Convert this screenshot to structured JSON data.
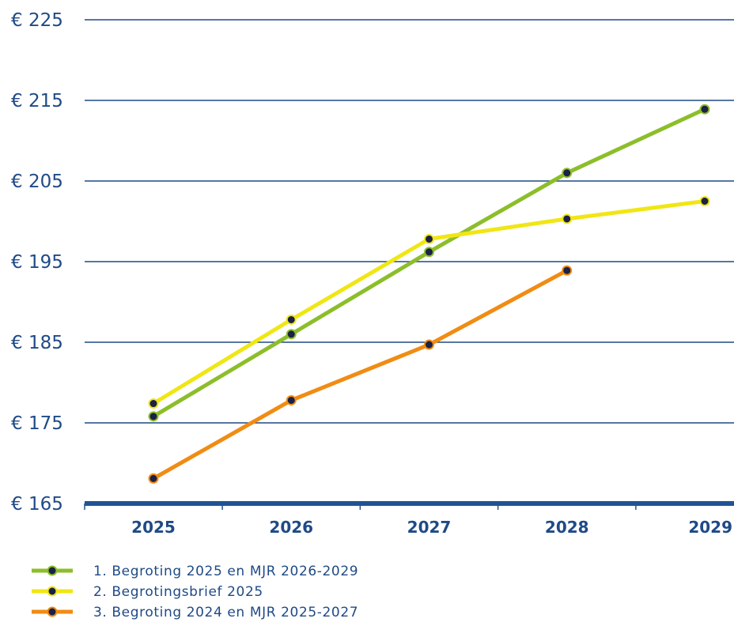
{
  "chart_data": {
    "type": "line",
    "title": "",
    "xlabel": "",
    "ylabel": "",
    "categories": [
      "2025",
      "2026",
      "2027",
      "2028",
      "2029"
    ],
    "y_ticks": [
      165,
      175,
      185,
      195,
      205,
      215,
      225
    ],
    "y_tick_labels": [
      "€ 165",
      "€ 175",
      "€ 185",
      "€ 195",
      "€ 205",
      "€ 215",
      "€ 225"
    ],
    "ylim": [
      165,
      225
    ],
    "grid": true,
    "legend_position": "bottom-left",
    "series": [
      {
        "name": "1. Begroting 2025 en MJR 2026-2029",
        "color": "#8cbe2a",
        "values": [
          175.8,
          186.0,
          196.2,
          206.0,
          213.9
        ]
      },
      {
        "name": "2. Begrotingsbrief 2025",
        "color": "#f0e614",
        "values": [
          177.4,
          187.8,
          197.8,
          200.3,
          202.5
        ]
      },
      {
        "name": "3. Begroting 2024 en MJR 2025-2027",
        "color": "#f08c14",
        "values": [
          168.1,
          177.8,
          184.7,
          193.9,
          null
        ]
      }
    ],
    "colors": {
      "axis": "#1f5494",
      "gridline": "#1f4a86",
      "text": "#1f4a86",
      "marker_fill": "#1b2147"
    }
  }
}
